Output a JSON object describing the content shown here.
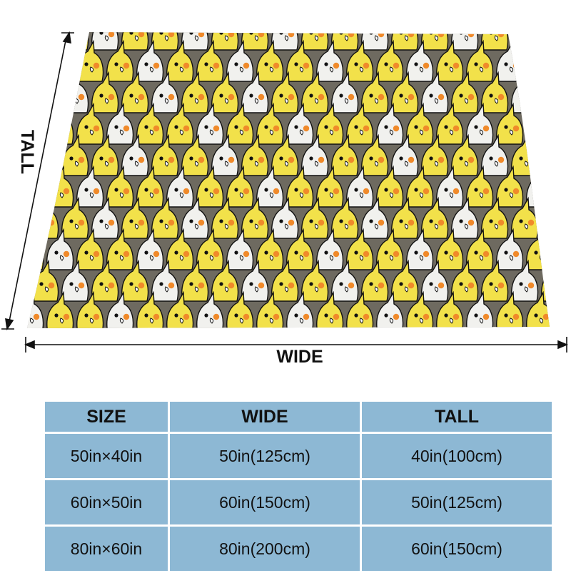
{
  "product": {
    "pattern": "cockatiel-pattern",
    "colors": {
      "background_gray": "#6e6a60",
      "yellow_bird": "#f2e14a",
      "white_bird": "#f1f1ee",
      "cheek": "#f08a2a",
      "outline": "#111111",
      "table_bg": "#8db8d4"
    }
  },
  "dimensions": {
    "tall_label": "TALL",
    "wide_label": "WIDE"
  },
  "size_table": {
    "headers": [
      "SIZE",
      "WIDE",
      "TALL"
    ],
    "rows": [
      [
        "50in×40in",
        "50in(125cm)",
        "40in(100cm)"
      ],
      [
        "60in×50in",
        "60in(150cm)",
        "50in(125cm)"
      ],
      [
        "80in×60in",
        "80in(200cm)",
        "60in(150cm)"
      ]
    ]
  }
}
